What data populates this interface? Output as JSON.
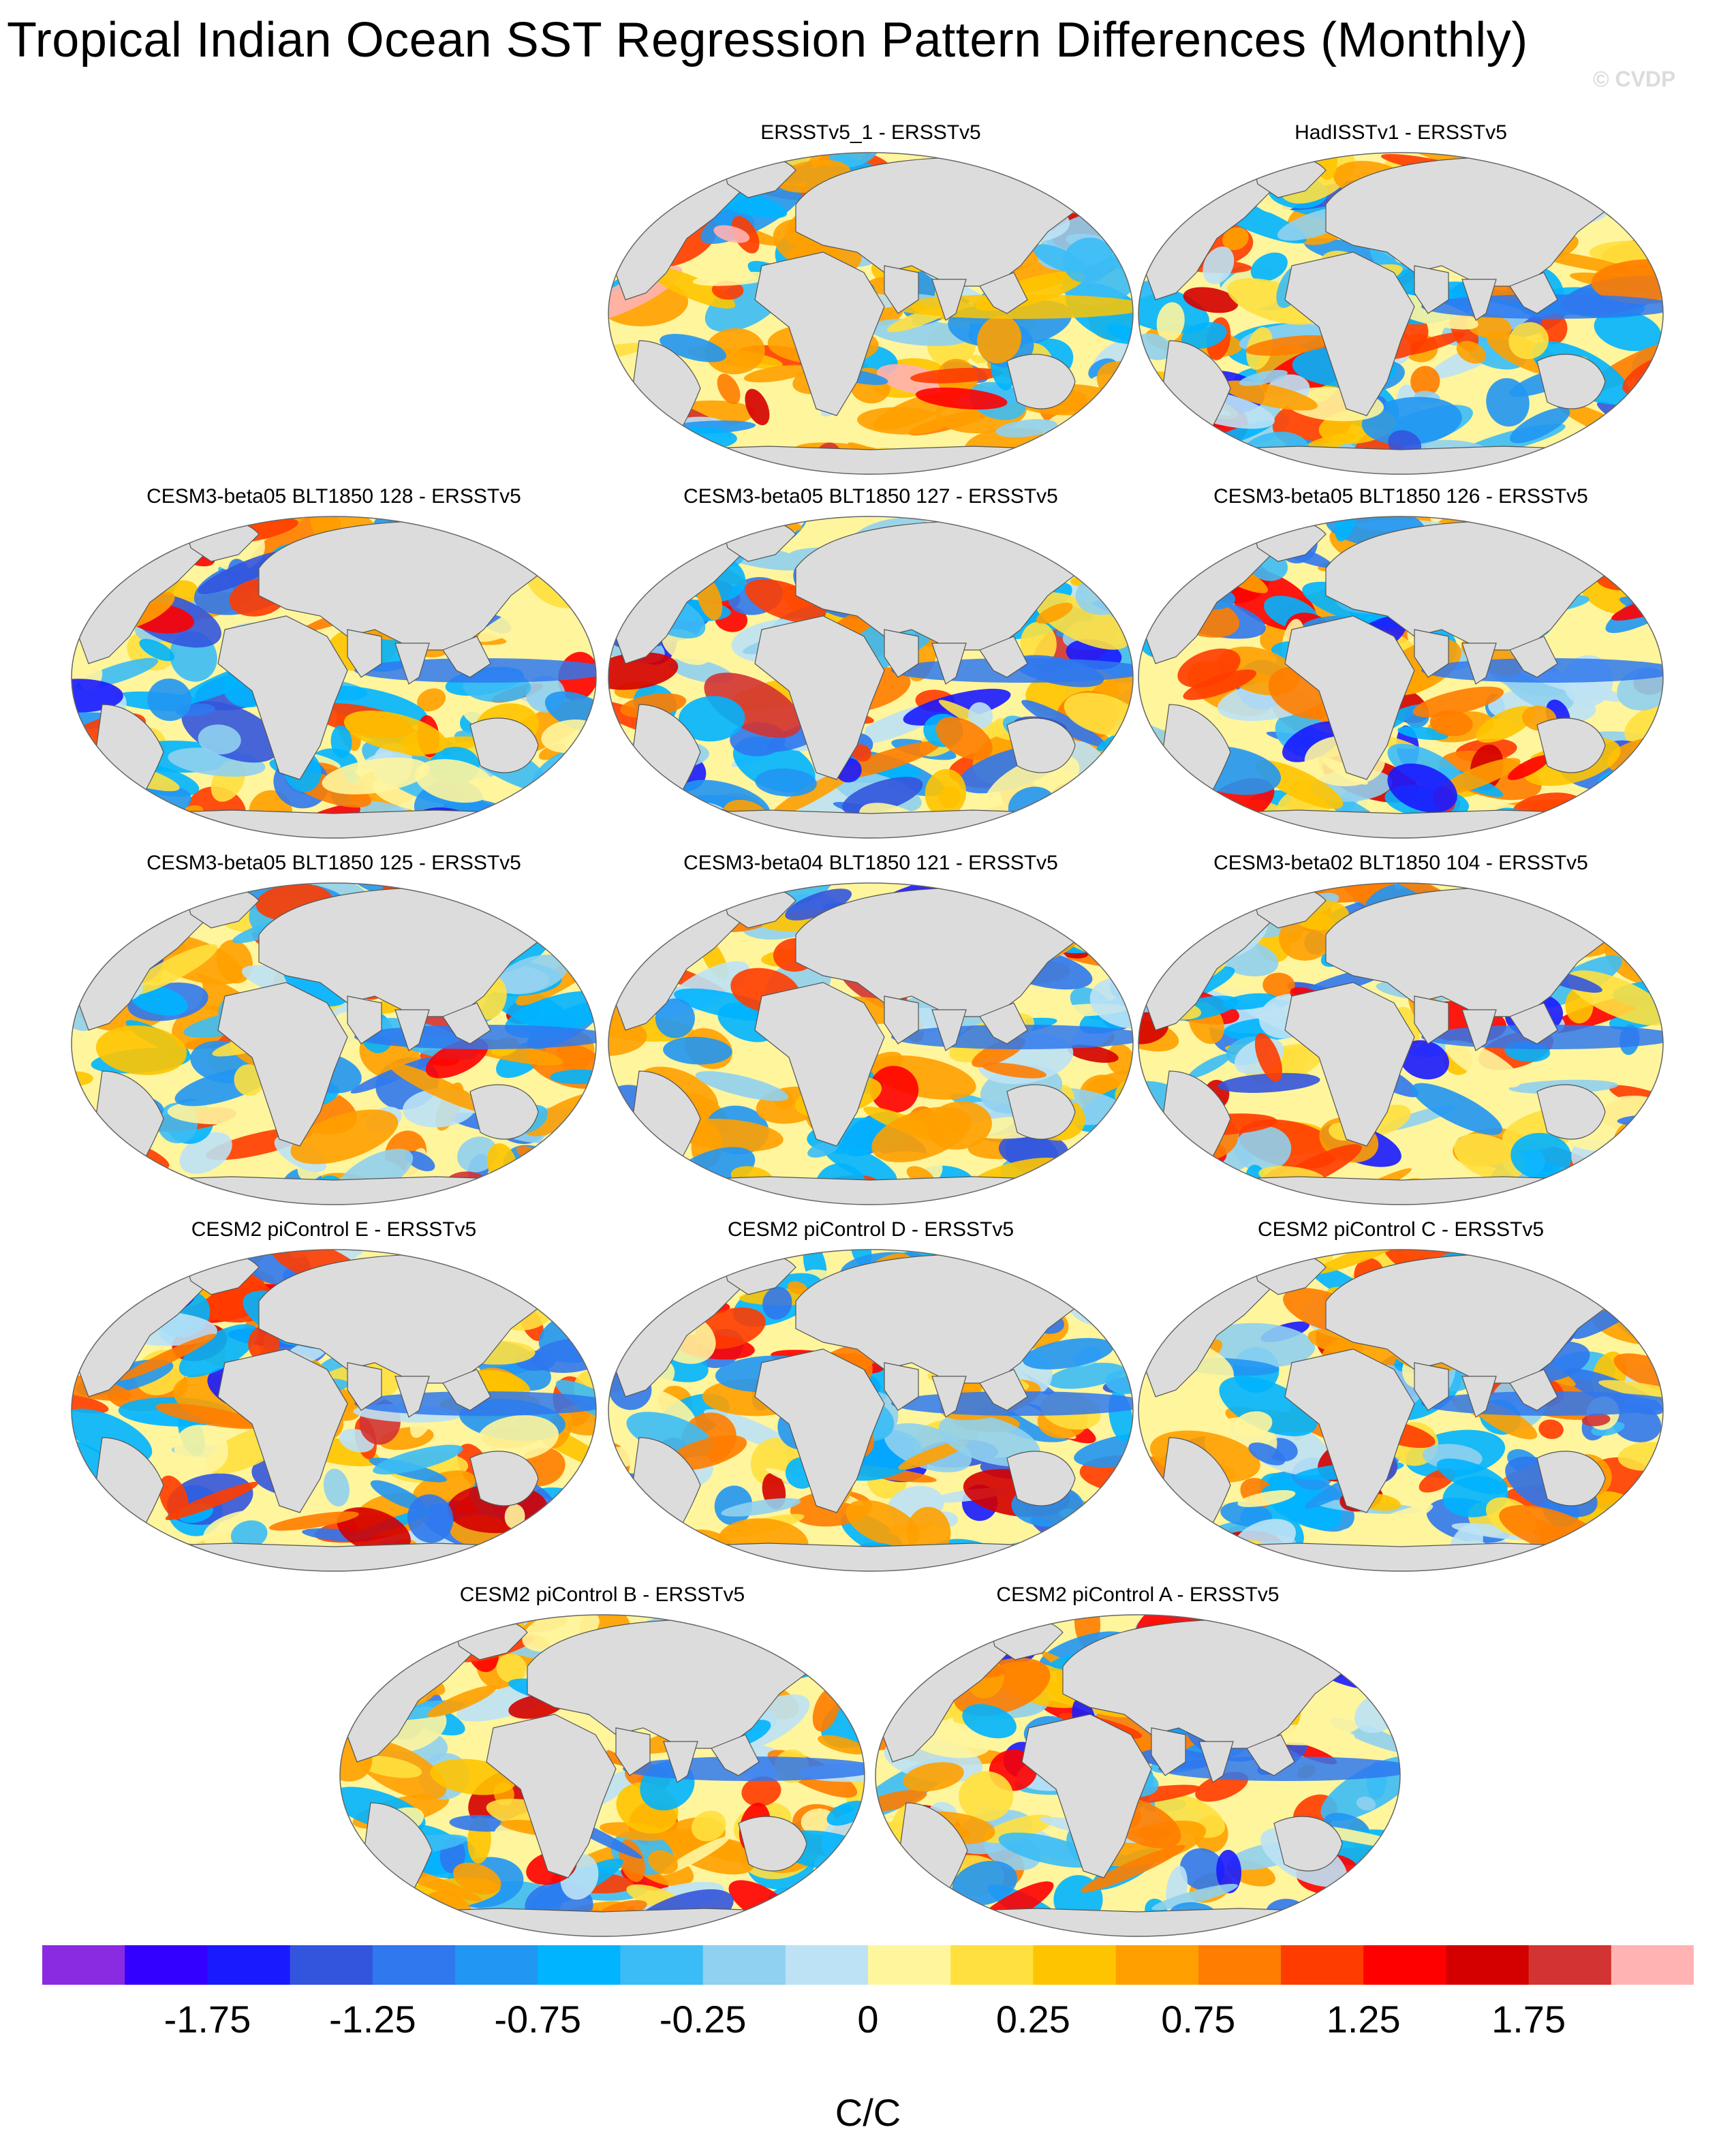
{
  "figure": {
    "title": "Tropical Indian Ocean SST Regression Pattern Differences (Monthly)",
    "watermark": "© CVDP"
  },
  "chart_data": {
    "type": "heatmap",
    "subtype": "global SST regression difference maps (filled contour)",
    "panels": [
      {
        "title": "ERSSTv5_1 - ERSSTv5",
        "dominant_sign": "positive"
      },
      {
        "title": "HadISSTv1 - ERSSTv5",
        "dominant_sign": "mixed"
      },
      {
        "title": "CESM3-beta05 BLT1850 128 - ERSSTv5",
        "dominant_sign": "mixed"
      },
      {
        "title": "CESM3-beta05 BLT1850 127 - ERSSTv5",
        "dominant_sign": "mixed"
      },
      {
        "title": "CESM3-beta05 BLT1850 126 - ERSSTv5",
        "dominant_sign": "mixed"
      },
      {
        "title": "CESM3-beta05 BLT1850 125 - ERSSTv5",
        "dominant_sign": "mixed"
      },
      {
        "title": "CESM3-beta04 BLT1850 121 - ERSSTv5",
        "dominant_sign": "mixed"
      },
      {
        "title": "CESM3-beta02 BLT1850 104 - ERSSTv5",
        "dominant_sign": "mixed"
      },
      {
        "title": "CESM2 piControl E - ERSSTv5",
        "dominant_sign": "mixed"
      },
      {
        "title": "CESM2 piControl D - ERSSTv5",
        "dominant_sign": "mixed"
      },
      {
        "title": "CESM2 piControl C - ERSSTv5",
        "dominant_sign": "mixed"
      },
      {
        "title": "CESM2 piControl B - ERSSTv5",
        "dominant_sign": "mixed"
      },
      {
        "title": "CESM2 piControl A - ERSSTv5",
        "dominant_sign": "mixed"
      }
    ],
    "colorbar": {
      "units": "C/C",
      "levels": [
        -2,
        -1.75,
        -1.5,
        -1.25,
        -1,
        -0.75,
        -0.5,
        -0.25,
        -0.1,
        0,
        0.1,
        0.25,
        0.5,
        0.75,
        1,
        1.25,
        1.5,
        1.75,
        2
      ],
      "tick_labels": [
        "-1.75",
        "-1.25",
        "-0.75",
        "-0.25",
        "0",
        "0.25",
        "0.75",
        "1.25",
        "1.75"
      ],
      "colors": [
        "#8a2be2",
        "#3300ff",
        "#1a1aff",
        "#3355dd",
        "#2f78ee",
        "#2196f3",
        "#00b4ff",
        "#3bbcf6",
        "#90d0f0",
        "#bde2f5",
        "#fff59d",
        "#ffe03f",
        "#ffc400",
        "#ffa000",
        "#ff7d00",
        "#ff3c00",
        "#ff0000",
        "#d40000",
        "#d33333",
        "#ffb3b3"
      ]
    }
  }
}
